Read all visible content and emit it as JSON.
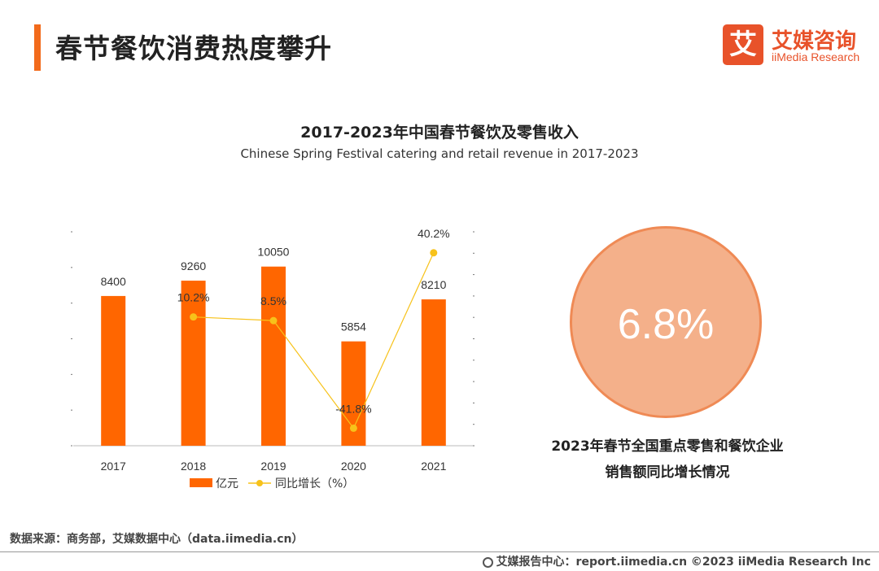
{
  "page": {
    "title": "春节餐饮消费热度攀升",
    "logo_cn": "艾媒咨询",
    "logo_en": "iiMedia Research",
    "logo_glyph": "艾",
    "accent_color": "#f26a1b"
  },
  "chart_data": {
    "type": "bar",
    "title": "2017-2023年中国春节餐饮及零售收入",
    "subtitle": "Chinese Spring Festival catering and retail revenue in 2017-2023",
    "categories": [
      "2017",
      "2018",
      "2019",
      "2020",
      "2021"
    ],
    "series": [
      {
        "name": "亿元",
        "type": "bar",
        "color": "#ff6600",
        "values": [
          8400,
          9260,
          10050,
          5854,
          8210
        ]
      },
      {
        "name": "同比增长（%）",
        "type": "line",
        "color": "#f7c21a",
        "values": [
          null,
          10.2,
          8.5,
          -41.8,
          40.2
        ],
        "labels": [
          "",
          "10.2%",
          "8.5%",
          "-41.8%",
          "40.2%"
        ]
      }
    ],
    "ylim": [
      0,
      12000
    ],
    "y2lim": [
      -50,
      50
    ],
    "legend": "bottom",
    "grid": false
  },
  "highlight": {
    "value": "6.8%",
    "caption_line1": "2023年春节全国重点零售和餐饮企业",
    "caption_line2": "销售额同比增长情况",
    "fill_color": "#f4b08a"
  },
  "footer": {
    "source": "数据来源：商务部，艾媒数据中心（data.iimedia.cn）",
    "copyright": "艾媒报告中心：report.iimedia.cn  ©2023  iiMedia Research  Inc"
  }
}
